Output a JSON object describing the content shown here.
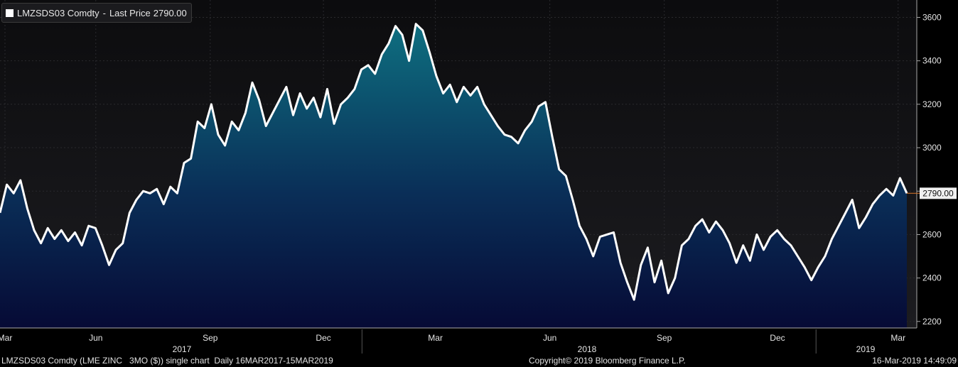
{
  "legend": {
    "ticker": "LMZSDS03 Comdty",
    "separator": "-",
    "label": "Last Price",
    "value": "2790.00"
  },
  "last_price_tag": "2790.00",
  "footer": {
    "left": "LMZSDS03 Comdty (LME ZINC   3MO ($)) single chart  Daily 16MAR2017-15MAR2019",
    "center": "Copyright© 2019 Bloomberg Finance L.P.",
    "right": "16-Mar-2019 14:49:09"
  },
  "colors": {
    "line": "#ffffff",
    "fill_top": "#0e6f80",
    "fill_bottom": "#060a35",
    "background": "#000000",
    "last_price_tag": "#f0f0f0",
    "last_price_marker": "#e07b2c"
  },
  "chart_data": {
    "type": "area",
    "title": "LMZSDS03 Comdty - Last Price 2790.00",
    "series": [
      {
        "name": "Last Price",
        "points": [
          [
            "2017-03-16",
            2700
          ],
          [
            "2017-03-20",
            2830
          ],
          [
            "2017-03-25",
            2790
          ],
          [
            "2017-03-30",
            2850
          ],
          [
            "2017-04-04",
            2720
          ],
          [
            "2017-04-08",
            2620
          ],
          [
            "2017-04-12",
            2560
          ],
          [
            "2017-04-17",
            2630
          ],
          [
            "2017-04-22",
            2580
          ],
          [
            "2017-04-27",
            2620
          ],
          [
            "2017-05-02",
            2570
          ],
          [
            "2017-05-07",
            2610
          ],
          [
            "2017-05-12",
            2550
          ],
          [
            "2017-05-17",
            2640
          ],
          [
            "2017-05-22",
            2630
          ],
          [
            "2017-05-27",
            2550
          ],
          [
            "2017-06-01",
            2460
          ],
          [
            "2017-06-06",
            2530
          ],
          [
            "2017-06-11",
            2560
          ],
          [
            "2017-06-16",
            2700
          ],
          [
            "2017-06-21",
            2760
          ],
          [
            "2017-06-26",
            2800
          ],
          [
            "2017-07-01",
            2790
          ],
          [
            "2017-07-06",
            2810
          ],
          [
            "2017-07-11",
            2740
          ],
          [
            "2017-07-16",
            2820
          ],
          [
            "2017-07-21",
            2790
          ],
          [
            "2017-07-26",
            2930
          ],
          [
            "2017-07-31",
            2950
          ],
          [
            "2017-08-05",
            3120
          ],
          [
            "2017-08-10",
            3090
          ],
          [
            "2017-08-15",
            3200
          ],
          [
            "2017-08-20",
            3060
          ],
          [
            "2017-08-25",
            3010
          ],
          [
            "2017-08-30",
            3120
          ],
          [
            "2017-09-04",
            3080
          ],
          [
            "2017-09-09",
            3160
          ],
          [
            "2017-09-14",
            3300
          ],
          [
            "2017-09-19",
            3220
          ],
          [
            "2017-09-24",
            3100
          ],
          [
            "2017-09-29",
            3160
          ],
          [
            "2017-10-04",
            3220
          ],
          [
            "2017-10-09",
            3280
          ],
          [
            "2017-10-14",
            3150
          ],
          [
            "2017-10-19",
            3250
          ],
          [
            "2017-10-24",
            3180
          ],
          [
            "2017-10-29",
            3230
          ],
          [
            "2017-11-03",
            3140
          ],
          [
            "2017-11-08",
            3270
          ],
          [
            "2017-11-13",
            3110
          ],
          [
            "2017-11-18",
            3200
          ],
          [
            "2017-11-23",
            3230
          ],
          [
            "2017-11-28",
            3270
          ],
          [
            "2017-12-03",
            3360
          ],
          [
            "2017-12-08",
            3380
          ],
          [
            "2017-12-13",
            3340
          ],
          [
            "2017-12-18",
            3430
          ],
          [
            "2017-12-23",
            3480
          ],
          [
            "2017-12-28",
            3560
          ],
          [
            "2018-01-02",
            3520
          ],
          [
            "2018-01-07",
            3400
          ],
          [
            "2018-01-12",
            3570
          ],
          [
            "2018-01-17",
            3540
          ],
          [
            "2018-01-22",
            3440
          ],
          [
            "2018-01-27",
            3330
          ],
          [
            "2018-02-01",
            3250
          ],
          [
            "2018-02-06",
            3290
          ],
          [
            "2018-02-11",
            3210
          ],
          [
            "2018-02-16",
            3280
          ],
          [
            "2018-02-21",
            3240
          ],
          [
            "2018-02-26",
            3280
          ],
          [
            "2018-03-03",
            3200
          ],
          [
            "2018-03-08",
            3150
          ],
          [
            "2018-03-13",
            3100
          ],
          [
            "2018-03-18",
            3060
          ],
          [
            "2018-03-23",
            3050
          ],
          [
            "2018-03-28",
            3020
          ],
          [
            "2018-04-02",
            3080
          ],
          [
            "2018-04-07",
            3120
          ],
          [
            "2018-04-12",
            3190
          ],
          [
            "2018-04-17",
            3210
          ],
          [
            "2018-04-22",
            3050
          ],
          [
            "2018-04-27",
            2900
          ],
          [
            "2018-05-02",
            2870
          ],
          [
            "2018-05-07",
            2760
          ],
          [
            "2018-05-12",
            2640
          ],
          [
            "2018-05-17",
            2580
          ],
          [
            "2018-05-22",
            2500
          ],
          [
            "2018-05-27",
            2590
          ],
          [
            "2018-06-01",
            2600
          ],
          [
            "2018-06-06",
            2610
          ],
          [
            "2018-06-11",
            2470
          ],
          [
            "2018-06-16",
            2380
          ],
          [
            "2018-06-21",
            2300
          ],
          [
            "2018-06-26",
            2460
          ],
          [
            "2018-07-01",
            2540
          ],
          [
            "2018-07-06",
            2380
          ],
          [
            "2018-07-11",
            2480
          ],
          [
            "2018-07-16",
            2330
          ],
          [
            "2018-07-21",
            2400
          ],
          [
            "2018-07-26",
            2550
          ],
          [
            "2018-07-31",
            2580
          ],
          [
            "2018-08-05",
            2640
          ],
          [
            "2018-08-10",
            2670
          ],
          [
            "2018-08-15",
            2610
          ],
          [
            "2018-08-20",
            2660
          ],
          [
            "2018-08-25",
            2620
          ],
          [
            "2018-08-30",
            2560
          ],
          [
            "2018-09-04",
            2470
          ],
          [
            "2018-09-09",
            2550
          ],
          [
            "2018-09-14",
            2480
          ],
          [
            "2018-09-19",
            2600
          ],
          [
            "2018-09-24",
            2530
          ],
          [
            "2018-09-29",
            2590
          ],
          [
            "2018-10-04",
            2620
          ],
          [
            "2018-10-09",
            2580
          ],
          [
            "2018-10-14",
            2550
          ],
          [
            "2018-10-19",
            2500
          ],
          [
            "2018-10-24",
            2450
          ],
          [
            "2018-10-29",
            2390
          ],
          [
            "2018-11-03",
            2450
          ],
          [
            "2018-11-08",
            2500
          ],
          [
            "2018-11-13",
            2580
          ],
          [
            "2018-11-18",
            2640
          ],
          [
            "2018-11-23",
            2700
          ],
          [
            "2018-11-28",
            2760
          ],
          [
            "2018-12-03",
            2630
          ],
          [
            "2018-12-08",
            2680
          ],
          [
            "2018-12-13",
            2740
          ],
          [
            "2018-12-18",
            2780
          ],
          [
            "2018-12-23",
            2810
          ],
          [
            "2018-12-28",
            2780
          ],
          [
            "2019-01-02",
            2860
          ],
          [
            "2019-01-07",
            2790
          ]
        ]
      }
    ],
    "x_ticks": [
      "Mar",
      "Jun",
      "Sep",
      "Dec",
      "Mar",
      "Jun",
      "Sep",
      "Dec",
      "Mar"
    ],
    "x_years": [
      "2017",
      "2018",
      "2019"
    ],
    "y_ticks": [
      2200,
      2400,
      2600,
      2800,
      3000,
      3200,
      3400,
      3600
    ],
    "ylim": [
      2170,
      3680
    ],
    "xlabel": "",
    "ylabel": "",
    "grid": true
  }
}
